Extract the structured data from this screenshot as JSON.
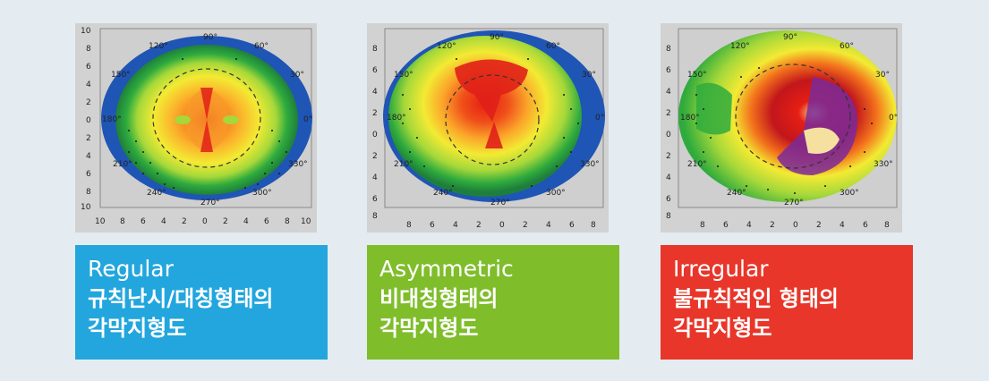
{
  "colors": {
    "background": "#e4ecf1",
    "regular_box": "#22a6dd",
    "asymmetric_box": "#7fbd2b",
    "irregular_box": "#e8362a",
    "map_background": "#d2d2d2"
  },
  "degree_labels": [
    "90°",
    "60°",
    "30°",
    "0°",
    "330°",
    "300°",
    "270°",
    "240°",
    "210°",
    "180°",
    "150°",
    "120°"
  ],
  "panels": [
    {
      "id": "regular",
      "axis_ticks_x": [
        "10",
        "8",
        "6",
        "4",
        "2",
        "0",
        "2",
        "4",
        "6",
        "8",
        "10"
      ],
      "axis_ticks_y": [
        "10",
        "8",
        "6",
        "4",
        "2",
        "0",
        "2",
        "4",
        "6",
        "8",
        "10"
      ],
      "caption_en": "Regular",
      "caption_ko_1": "규칙난시/대칭형태의",
      "caption_ko_2": "각막지형도"
    },
    {
      "id": "asymmetric",
      "axis_ticks_x": [
        "8",
        "6",
        "4",
        "2",
        "0",
        "2",
        "4",
        "6",
        "8"
      ],
      "axis_ticks_y": [
        "8",
        "6",
        "4",
        "2",
        "0",
        "2",
        "4",
        "6",
        "8"
      ],
      "caption_en": "Asymmetric",
      "caption_ko_1": "비대칭형태의",
      "caption_ko_2": "각막지형도"
    },
    {
      "id": "irregular",
      "axis_ticks_x": [
        "8",
        "6",
        "4",
        "2",
        "0",
        "2",
        "4",
        "6",
        "8"
      ],
      "axis_ticks_y": [
        "8",
        "6",
        "4",
        "2",
        "0",
        "2",
        "4",
        "6",
        "8"
      ],
      "caption_en": "Irregular",
      "caption_ko_1": "불규칙적인 형태의",
      "caption_ko_2": "각막지형도"
    }
  ]
}
